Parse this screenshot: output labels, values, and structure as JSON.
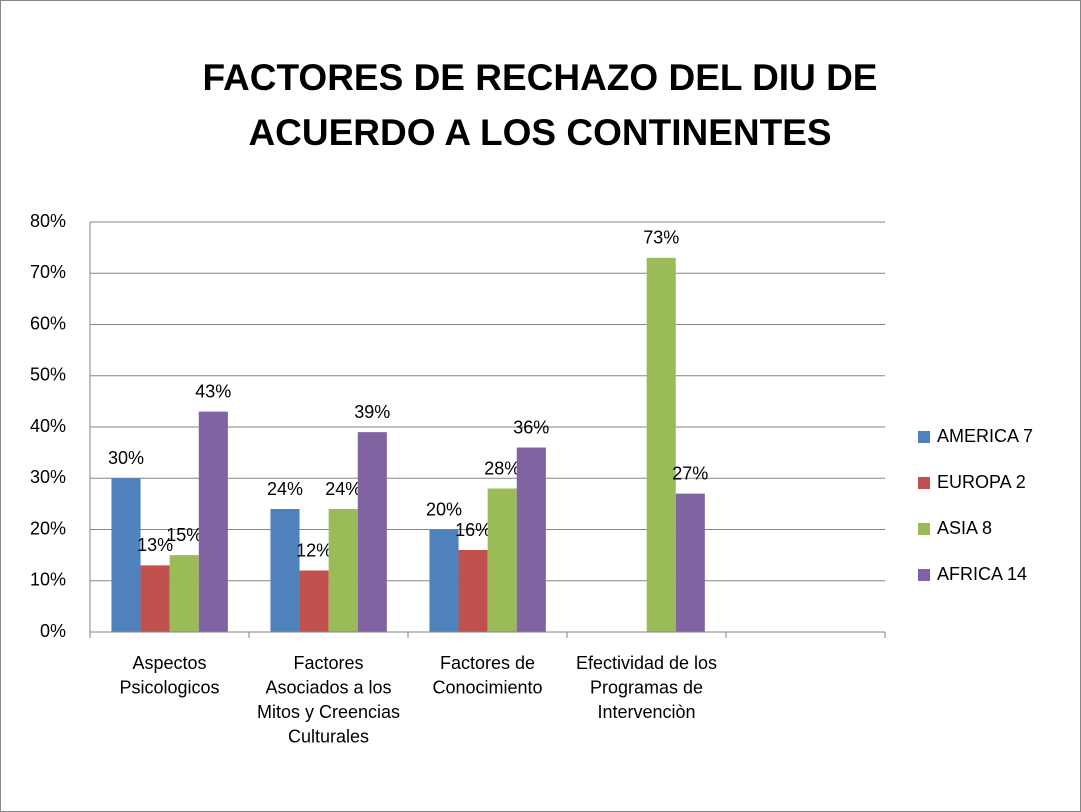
{
  "chart_data": {
    "type": "bar",
    "title": "FACTORES DE RECHAZO DEL DIU DE ACUERDO A LOS CONTINENTES",
    "categories": [
      "Aspectos Psicologicos",
      "Factores Asociados a los Mitos y Creencias Culturales",
      "Factores de Conocimiento",
      "Efectividad de los Programas de Intervenciòn",
      null
    ],
    "series": [
      {
        "name": "AMERICA 7",
        "color": "#4f81bd",
        "values": [
          30,
          24,
          20,
          null,
          null
        ],
        "value_labels": [
          "30%",
          "24%",
          "20%",
          null,
          null
        ]
      },
      {
        "name": "EUROPA 2",
        "color": "#c0504d",
        "values": [
          13,
          12,
          16,
          null,
          null
        ],
        "value_labels": [
          "13%",
          "12%",
          "16%",
          null,
          null
        ]
      },
      {
        "name": "ASIA 8",
        "color": "#9bbb59",
        "values": [
          15,
          24,
          28,
          73,
          null
        ],
        "value_labels": [
          "15%",
          "24%",
          "28%",
          "73%",
          null
        ]
      },
      {
        "name": "AFRICA 14",
        "color": "#8064a2",
        "values": [
          43,
          39,
          36,
          27,
          null
        ],
        "value_labels": [
          "43%",
          "39%",
          "36%",
          "27%",
          null
        ]
      }
    ],
    "ylim": [
      0,
      80
    ],
    "yticks": [
      {
        "value": 0,
        "label": "0%"
      },
      {
        "value": 10,
        "label": "10%"
      },
      {
        "value": 20,
        "label": "20%"
      },
      {
        "value": 30,
        "label": "30%"
      },
      {
        "value": 40,
        "label": "40%"
      },
      {
        "value": 50,
        "label": "50%"
      },
      {
        "value": 60,
        "label": "60%"
      },
      {
        "value": 70,
        "label": "70%"
      },
      {
        "value": 80,
        "label": "80%"
      }
    ],
    "grid": true,
    "legend": "right"
  }
}
